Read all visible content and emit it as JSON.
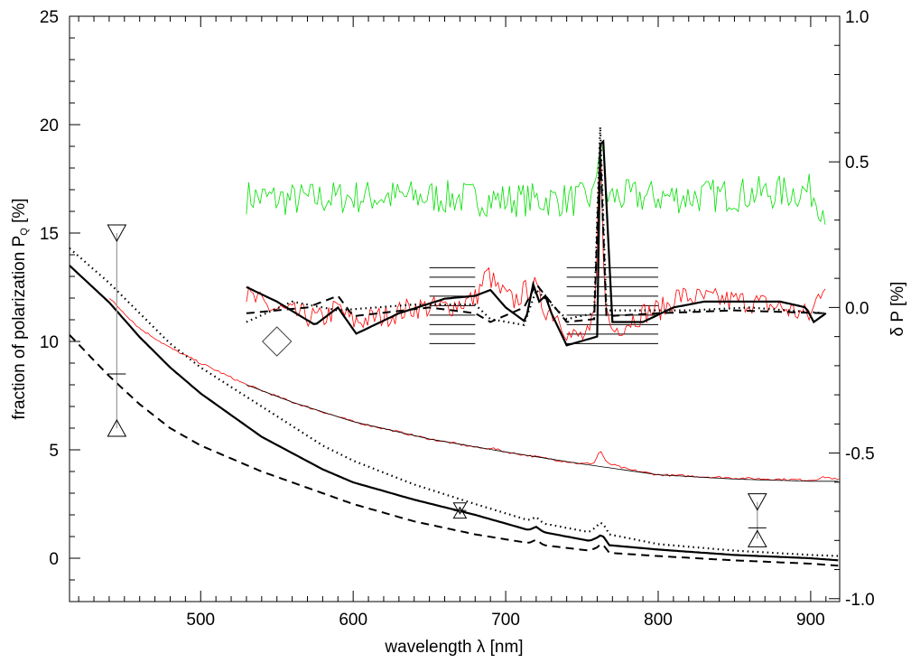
{
  "chart_data": {
    "type": "line",
    "xlabel": "wavelength λ [nm]",
    "ylabel_left": "fraction of polarization P",
    "ylabel_left_sub": "Q",
    "ylabel_left_unit": " [%]",
    "ylabel_right": "δ P [%]",
    "xlim": [
      414,
      919
    ],
    "ylim_left": [
      -2,
      25
    ],
    "ylim_right": [
      -1.01,
      1.0
    ],
    "x_ticks": [
      "500",
      "600",
      "700",
      "800",
      "900"
    ],
    "y_left_ticks": [
      "0",
      "5",
      "10",
      "15",
      "20",
      "25"
    ],
    "y_right_ticks": [
      "-1.0",
      "-0.5",
      "0.0",
      "0.5",
      "1.0"
    ],
    "grid": false,
    "series_left": [
      {
        "name": "observed P (red)",
        "color": "#ff0000",
        "style": "thin",
        "noise": 0.05,
        "x": [
          440,
          460,
          480,
          500,
          530,
          560,
          600,
          650,
          686,
          690,
          700,
          750,
          758,
          762,
          766,
          780,
          800,
          850,
          900,
          910,
          919
        ],
        "y": [
          12.0,
          10.6,
          9.7,
          9.0,
          8.0,
          7.2,
          6.3,
          5.5,
          5.05,
          5.1,
          4.9,
          4.35,
          4.4,
          5.0,
          4.4,
          4.1,
          3.85,
          3.7,
          3.6,
          3.75,
          3.6
        ]
      },
      {
        "name": "model fit (thin black)",
        "color": "#000000",
        "style": "thin",
        "noise": 0,
        "x": [
          530,
          560,
          600,
          650,
          700,
          750,
          800,
          850,
          900,
          919
        ],
        "y": [
          8.0,
          7.2,
          6.3,
          5.5,
          4.9,
          4.35,
          3.85,
          3.65,
          3.55,
          3.55
        ]
      },
      {
        "name": "model solid",
        "color": "#000000",
        "style": "solid",
        "noise": 0,
        "x": [
          414,
          440,
          460,
          480,
          500,
          540,
          580,
          600,
          640,
          680,
          715,
          720,
          725,
          755,
          760,
          763,
          768,
          800,
          850,
          900,
          919
        ],
        "y": [
          13.5,
          11.8,
          10.2,
          8.8,
          7.6,
          5.6,
          4.1,
          3.5,
          2.7,
          2.0,
          1.3,
          1.45,
          1.2,
          0.8,
          0.95,
          1.1,
          0.6,
          0.4,
          0.15,
          0.0,
          -0.1
        ]
      },
      {
        "name": "model dotted",
        "color": "#000000",
        "style": "dotted",
        "noise": 0,
        "x": [
          414,
          440,
          460,
          480,
          500,
          540,
          580,
          600,
          640,
          680,
          715,
          720,
          725,
          755,
          760,
          763,
          768,
          800,
          850,
          900,
          919
        ],
        "y": [
          14.3,
          12.7,
          11.3,
          9.9,
          8.8,
          7.0,
          5.2,
          4.5,
          3.4,
          2.5,
          1.75,
          1.9,
          1.6,
          1.2,
          1.5,
          1.7,
          1.1,
          0.65,
          0.35,
          0.15,
          0.1
        ]
      },
      {
        "name": "model dashed",
        "color": "#000000",
        "style": "dashed",
        "noise": 0,
        "x": [
          414,
          440,
          460,
          480,
          500,
          540,
          580,
          600,
          640,
          680,
          715,
          720,
          725,
          755,
          760,
          763,
          768,
          800,
          850,
          900,
          919
        ],
        "y": [
          10.3,
          8.4,
          7.1,
          6.0,
          5.2,
          4.0,
          3.0,
          2.5,
          1.7,
          1.1,
          0.7,
          0.85,
          0.6,
          0.35,
          0.5,
          0.7,
          0.25,
          0.1,
          -0.1,
          -0.25,
          -0.35
        ]
      }
    ],
    "series_right": [
      {
        "name": "δP green",
        "color": "#00e000",
        "style": "thin",
        "noise": 0.06,
        "x": [
          530,
          560,
          600,
          650,
          700,
          750,
          758,
          762,
          766,
          780,
          820,
          860,
          900,
          910
        ],
        "y": [
          0.38,
          0.37,
          0.38,
          0.38,
          0.37,
          0.37,
          0.38,
          0.6,
          0.38,
          0.38,
          0.38,
          0.39,
          0.4,
          0.33
        ]
      },
      {
        "name": "δP red",
        "color": "#ff0000",
        "style": "thin",
        "noise": 0.04,
        "x": [
          530,
          545,
          560,
          580,
          590,
          600,
          620,
          640,
          660,
          680,
          688,
          695,
          705,
          718,
          725,
          735,
          742,
          755,
          759,
          762,
          765,
          770,
          790,
          805,
          812,
          830,
          860,
          880,
          900,
          905,
          910
        ],
        "y": [
          0.04,
          0.0,
          -0.02,
          -0.04,
          0.0,
          -0.05,
          -0.03,
          0.0,
          0.0,
          0.03,
          0.12,
          0.06,
          0.02,
          0.08,
          0.0,
          -0.03,
          -0.1,
          -0.1,
          0.0,
          0.63,
          0.0,
          -0.08,
          -0.02,
          0.0,
          0.04,
          0.03,
          0.02,
          0.0,
          -0.03,
          0.04,
          0.1
        ]
      },
      {
        "name": "δP solid",
        "color": "#000000",
        "style": "solid",
        "noise": 0,
        "x": [
          530,
          550,
          575,
          590,
          602,
          630,
          660,
          680,
          690,
          700,
          713,
          718,
          722,
          726,
          730,
          740,
          760,
          762,
          764,
          770,
          790,
          810,
          830,
          880,
          897,
          902,
          910
        ],
        "y": [
          0.07,
          0.02,
          -0.06,
          0.0,
          -0.09,
          -0.02,
          0.03,
          0.04,
          0.06,
          0.0,
          -0.05,
          0.08,
          0.02,
          0.04,
          -0.02,
          -0.13,
          -0.1,
          0.56,
          0.57,
          -0.05,
          -0.05,
          0.0,
          0.02,
          0.02,
          0.0,
          -0.05,
          -0.02
        ]
      },
      {
        "name": "δP dotted",
        "color": "#000000",
        "style": "dotted",
        "noise": 0,
        "x": [
          530,
          560,
          590,
          640,
          680,
          690,
          712,
          720,
          740,
          758,
          762,
          766,
          780,
          820,
          860,
          910
        ],
        "y": [
          -0.05,
          0.02,
          -0.01,
          0.01,
          0.01,
          -0.04,
          -0.06,
          0.06,
          -0.04,
          -0.02,
          0.62,
          -0.01,
          -0.01,
          -0.01,
          0.0,
          -0.02
        ]
      },
      {
        "name": "δP dashed",
        "color": "#000000",
        "style": "dashed",
        "noise": 0,
        "x": [
          530,
          570,
          590,
          600,
          650,
          680,
          690,
          712,
          720,
          740,
          758,
          762,
          766,
          800,
          850,
          910
        ],
        "y": [
          -0.02,
          0.0,
          0.04,
          -0.03,
          0.0,
          -0.02,
          -0.05,
          0.0,
          0.08,
          -0.05,
          -0.04,
          0.55,
          -0.03,
          -0.02,
          -0.01,
          -0.02
        ]
      }
    ],
    "markers": [
      {
        "x": 445,
        "down": 15,
        "up": 6,
        "tick": 8.5,
        "size": "large"
      },
      {
        "x": 670,
        "down": 2.3,
        "up": 2.1,
        "tick": 2.2,
        "size": "small"
      },
      {
        "x": 865,
        "down": 2.6,
        "up": 0.9,
        "tick": 1.4,
        "size": "large"
      }
    ],
    "diamond": {
      "x": 550,
      "y": 10.0
    },
    "hatch_regions": [
      {
        "x": [
          650,
          680
        ],
        "y": [
          9.9,
          13.4
        ],
        "lines": 9
      },
      {
        "x": [
          740,
          800
        ],
        "y": [
          9.9,
          13.4
        ],
        "lines": 9
      }
    ]
  }
}
